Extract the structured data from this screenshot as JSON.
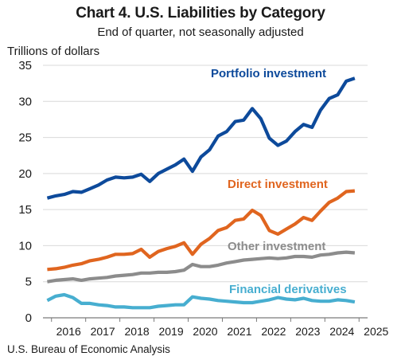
{
  "chart_data": {
    "type": "line",
    "title": "Chart 4. U.S. Liabilities by Category",
    "subtitle": "End of quarter, not seasonally adjusted",
    "ylabel": "Trillions of dollars",
    "xlabel": "",
    "source": "U.S. Bureau of Economic Analysis",
    "ylim": [
      0,
      35
    ],
    "yticks": [
      0,
      5,
      10,
      15,
      20,
      25,
      30,
      35
    ],
    "xlim": [
      2015.75,
      2025.25
    ],
    "xticks": [
      "2016",
      "2017",
      "2018",
      "2019",
      "2020",
      "2021",
      "2022",
      "2023",
      "2024",
      "2025"
    ],
    "grid": "horizontal",
    "legend": "inline labels",
    "x": [
      2015.875,
      2016.125,
      2016.375,
      2016.625,
      2016.875,
      2017.125,
      2017.375,
      2017.625,
      2017.875,
      2018.125,
      2018.375,
      2018.625,
      2018.875,
      2019.125,
      2019.375,
      2019.625,
      2019.875,
      2020.125,
      2020.375,
      2020.625,
      2020.875,
      2021.125,
      2021.375,
      2021.625,
      2021.875,
      2022.125,
      2022.375,
      2022.625,
      2022.875,
      2023.125,
      2023.375,
      2023.625,
      2023.875,
      2024.125,
      2024.375,
      2024.625,
      2024.875
    ],
    "series": [
      {
        "name": "Portfolio investment",
        "color": "#0d4a9b",
        "values": [
          16.6,
          16.9,
          17.1,
          17.5,
          17.4,
          17.9,
          18.4,
          19.1,
          19.5,
          19.4,
          19.5,
          19.9,
          18.9,
          20.0,
          20.6,
          21.2,
          22.0,
          20.3,
          22.3,
          23.3,
          25.2,
          25.8,
          27.2,
          27.4,
          29.0,
          27.6,
          24.9,
          23.9,
          24.5,
          25.8,
          26.8,
          26.4,
          28.8,
          30.4,
          30.9,
          32.8,
          33.2
        ]
      },
      {
        "name": "Direct investment",
        "color": "#e0651f",
        "values": [
          6.7,
          6.8,
          7.0,
          7.3,
          7.5,
          7.9,
          8.1,
          8.4,
          8.8,
          8.8,
          8.9,
          9.5,
          8.4,
          9.2,
          9.6,
          9.9,
          10.4,
          8.8,
          10.2,
          11.0,
          12.1,
          12.5,
          13.5,
          13.7,
          14.9,
          14.2,
          12.1,
          11.6,
          12.3,
          13.0,
          13.9,
          13.5,
          14.8,
          16.0,
          16.6,
          17.5,
          17.6
        ]
      },
      {
        "name": "Other investment",
        "color": "#8c8c8c",
        "values": [
          5.0,
          5.2,
          5.3,
          5.4,
          5.2,
          5.4,
          5.5,
          5.6,
          5.8,
          5.9,
          6.0,
          6.2,
          6.2,
          6.3,
          6.3,
          6.4,
          6.6,
          7.4,
          7.1,
          7.1,
          7.3,
          7.6,
          7.8,
          8.0,
          8.1,
          8.2,
          8.3,
          8.2,
          8.3,
          8.5,
          8.5,
          8.4,
          8.7,
          8.8,
          9.0,
          9.1,
          9.0
        ]
      },
      {
        "name": "Financial derivatives",
        "color": "#47aed0",
        "values": [
          2.4,
          3.0,
          3.2,
          2.8,
          2.0,
          2.0,
          1.8,
          1.7,
          1.5,
          1.5,
          1.4,
          1.4,
          1.4,
          1.6,
          1.7,
          1.8,
          1.8,
          2.9,
          2.7,
          2.6,
          2.4,
          2.3,
          2.2,
          2.1,
          2.1,
          2.3,
          2.5,
          2.8,
          2.6,
          2.5,
          2.7,
          2.4,
          2.3,
          2.3,
          2.5,
          2.4,
          2.2
        ]
      }
    ]
  }
}
